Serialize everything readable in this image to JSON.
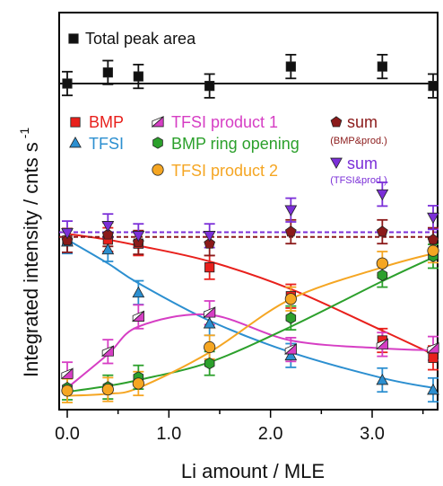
{
  "chart_data": {
    "type": "scatter",
    "xlabel": "Li amount / MLE",
    "ylabel": "Integrated intensity / cnts s",
    "ylabel_superscript": "-1",
    "xlim": [
      -0.05,
      3.75
    ],
    "ylim": [
      0,
      1
    ],
    "xticks": [
      0.0,
      1.0,
      2.0,
      3.0
    ],
    "xtick_labels": [
      "0.0",
      "1.0",
      "2.0",
      "3.0"
    ],
    "yaxis_values_shown": false,
    "grid": false,
    "x": [
      0.0,
      0.4,
      0.7,
      1.4,
      2.2,
      3.1,
      3.6
    ],
    "series": [
      {
        "name": "Total peak area",
        "marker": "square",
        "color": "#111111",
        "values": [
          0.825,
          0.853,
          0.843,
          0.819,
          0.868,
          0.868,
          0.819
        ],
        "fit": "line",
        "fit_value": 0.825
      },
      {
        "name": "BMP",
        "marker": "square",
        "color": "#e8201c",
        "values": [
          0.428,
          0.43,
          0.42,
          0.36,
          0.287,
          0.175,
          0.131
        ],
        "fit_values": [
          0.445,
          0.43,
          0.415,
          0.375,
          0.305,
          0.2,
          0.14
        ]
      },
      {
        "name": "TFSI",
        "marker": "triangle-up",
        "color": "#2c8fd0",
        "values": [
          0.425,
          0.405,
          0.296,
          0.218,
          0.137,
          0.075,
          0.05
        ],
        "fit_values": [
          0.43,
          0.37,
          0.32,
          0.225,
          0.145,
          0.08,
          0.055
        ]
      },
      {
        "name": "TFSI product 1",
        "marker": "triangle-half",
        "color": "#d63ec4",
        "values": [
          0.09,
          0.147,
          0.235,
          0.245,
          0.152,
          0.165,
          0.155
        ],
        "fit_values": [
          0.055,
          0.14,
          0.21,
          0.24,
          0.175,
          0.155,
          0.15
        ]
      },
      {
        "name": "BMP ring opening",
        "marker": "hexagon",
        "color": "#2ca02c",
        "values": [
          0.055,
          0.057,
          0.082,
          0.117,
          0.232,
          0.34,
          0.388
        ],
        "fit_values": [
          0.045,
          0.06,
          0.075,
          0.12,
          0.21,
          0.325,
          0.385
        ]
      },
      {
        "name": "TFSI product 2",
        "marker": "circle",
        "color": "#f5a623",
        "values": [
          0.048,
          0.051,
          0.066,
          0.158,
          0.28,
          0.37,
          0.402
        ],
        "fit_values": [
          0.035,
          0.04,
          0.055,
          0.145,
          0.28,
          0.36,
          0.395
        ]
      },
      {
        "name": "sum",
        "name_sub": "(BMP&prod.)",
        "marker": "pentagon",
        "color": "#8b1a1a",
        "values": [
          0.428,
          0.443,
          0.423,
          0.42,
          0.45,
          0.45,
          0.43
        ],
        "fit": "dashed-line",
        "fit_value": 0.437
      },
      {
        "name": "sum",
        "name_sub": "(TFSI&prod.)",
        "marker": "triangle-down",
        "color": "#7b2fd8",
        "values": [
          0.447,
          0.465,
          0.44,
          0.44,
          0.505,
          0.545,
          0.486
        ],
        "fit": "dashed-line",
        "fit_value": 0.449
      }
    ],
    "error_bar": 0.03,
    "legend_placement": "top"
  }
}
